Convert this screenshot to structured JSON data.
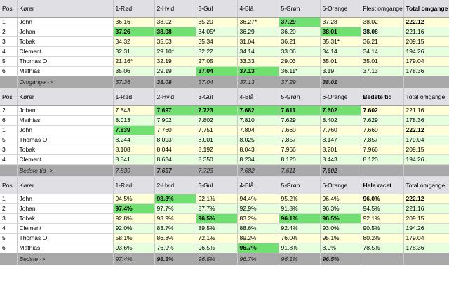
{
  "colors": {
    "red": "#e06666",
    "white": "#ffffff",
    "yellow": "#ffff00",
    "blue": "#7fc6e6",
    "green": "#85e085",
    "orange": "#f6a06a",
    "highlight": "#70e070",
    "summary": "#a9a9a9"
  },
  "section1": {
    "headers": [
      "Pos",
      "Kører",
      "1-Rød",
      "2-Hvid",
      "3-Gul",
      "4-Blå",
      "5-Grøn",
      "6-Orange",
      "Flest omgange",
      "Total omgange"
    ],
    "rows": [
      [
        "1",
        "John",
        "36.16",
        "38.02",
        "35.20",
        "36.27*",
        "37.29",
        "37.28",
        "38.02",
        "222.12"
      ],
      [
        "2",
        "Johan",
        "37.26",
        "38.08",
        "34.05*",
        "36.29",
        "36.20",
        "38.01",
        "38.08",
        "221.16"
      ],
      [
        "3",
        "Tobak",
        "34.32",
        "35.03",
        "35.34",
        "31.04",
        "36.21",
        "35.31*",
        "36.21",
        "209.15"
      ],
      [
        "4",
        "Clement",
        "32.31",
        "29.10*",
        "32.22",
        "34.14",
        "33.06",
        "34.14",
        "34.14",
        "194.26"
      ],
      [
        "5",
        "Thomas O",
        "21.16*",
        "32.19",
        "27.05",
        "33.33",
        "29.03",
        "35.01",
        "35.01",
        "179.04"
      ],
      [
        "6",
        "Mathias",
        "35.06",
        "29.19",
        "37.04",
        "37.13",
        "36.11*",
        "3.19",
        "37.13",
        "178.36"
      ]
    ],
    "summary": [
      "",
      "Omgange ->",
      "37.26",
      "38.08",
      "37.04",
      "37.13",
      "37.29",
      "38.01",
      "",
      ""
    ]
  },
  "section2": {
    "headers": [
      "Pos",
      "Kører",
      "1-Rød",
      "2-Hvid",
      "3-Gul",
      "4-Blå",
      "5-Grøn",
      "6-Orange",
      "Bedste tid",
      "Total omgange"
    ],
    "rows": [
      [
        "2",
        "Johan",
        "7.843",
        "7.697",
        "7.723",
        "7.682",
        "7.611",
        "7.602",
        "7.602",
        "221.16"
      ],
      [
        "6",
        "Mathias",
        "8.013",
        "7.902",
        "7.802",
        "7.810",
        "7.629",
        "8.402",
        "7.629",
        "178.36"
      ],
      [
        "1",
        "John",
        "7.839",
        "7.760",
        "7.751",
        "7.804",
        "7.660",
        "7.760",
        "7.660",
        "222.12"
      ],
      [
        "5",
        "Thomas O",
        "8.244",
        "8.093",
        "8.001",
        "8.025",
        "7.857",
        "8.147",
        "7.857",
        "179.04"
      ],
      [
        "3",
        "Tobak",
        "8.108",
        "8.044",
        "8.192",
        "8.043",
        "7.966",
        "8.201",
        "7.966",
        "209.15"
      ],
      [
        "4",
        "Clement",
        "8.541",
        "8.634",
        "8.350",
        "8.234",
        "8.120",
        "8.443",
        "8.120",
        "194.26"
      ]
    ],
    "summary": [
      "",
      "Bedste tid ->",
      "7.839",
      "7.697",
      "7.723",
      "7.682",
      "7.611",
      "7.602",
      "",
      ""
    ]
  },
  "section3": {
    "headers": [
      "Pos",
      "Kører",
      "1-Rød",
      "2-Hvid",
      "3-Gul",
      "4-Blå",
      "5-Grøn",
      "6-Orange",
      "Hele racet",
      "Total omgange"
    ],
    "rows": [
      [
        "1",
        "John",
        "94.5%",
        "98.3%",
        "92.1%",
        "94.4%",
        "95.2%",
        "96.4%",
        "96.0%",
        "222.12"
      ],
      [
        "2",
        "Johan",
        "97.4%",
        "97.7%",
        "87.7%",
        "92.9%",
        "91.8%",
        "96.3%",
        "94.5%",
        "221.16"
      ],
      [
        "3",
        "Tobak",
        "92.8%",
        "93.9%",
        "96.5%",
        "83.2%",
        "96.1%",
        "96.5%",
        "92.1%",
        "209.15"
      ],
      [
        "4",
        "Clement",
        "92.0%",
        "83.7%",
        "89.5%",
        "88.6%",
        "92.4%",
        "93.0%",
        "90.5%",
        "194.26"
      ],
      [
        "5",
        "Thomas O",
        "58.1%",
        "86.8%",
        "72.1%",
        "89.2%",
        "76.0%",
        "95.1%",
        "80.2%",
        "179.04"
      ],
      [
        "6",
        "Mathias",
        "93.6%",
        "76.9%",
        "96.5%",
        "96.7%",
        "91.8%",
        "8.9%",
        "78.5%",
        "178.36"
      ]
    ],
    "summary": [
      "",
      "Bedste ->",
      "97.4%",
      "98.3%",
      "96.5%",
      "96.7%",
      "96.1%",
      "96.5%",
      "",
      ""
    ]
  }
}
